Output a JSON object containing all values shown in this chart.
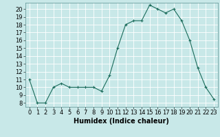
{
  "x": [
    0,
    1,
    2,
    3,
    4,
    5,
    6,
    7,
    8,
    9,
    10,
    11,
    12,
    13,
    14,
    15,
    16,
    17,
    18,
    19,
    20,
    21,
    22,
    23
  ],
  "y": [
    11,
    8,
    8,
    10,
    10.5,
    10,
    10,
    10,
    10,
    9.5,
    11.5,
    15,
    18,
    18.5,
    18.5,
    20.5,
    20,
    19.5,
    20,
    18.5,
    16,
    12.5,
    10,
    8.5
  ],
  "xlabel": "Humidex (Indice chaleur)",
  "xlim": [
    -0.5,
    23.5
  ],
  "ylim": [
    7.5,
    20.8
  ],
  "yticks": [
    8,
    9,
    10,
    11,
    12,
    13,
    14,
    15,
    16,
    17,
    18,
    19,
    20
  ],
  "line_color": "#1a6b5a",
  "bg_color": "#c8e8e8",
  "grid_color": "#ffffff",
  "label_fontsize": 7,
  "tick_fontsize": 6
}
